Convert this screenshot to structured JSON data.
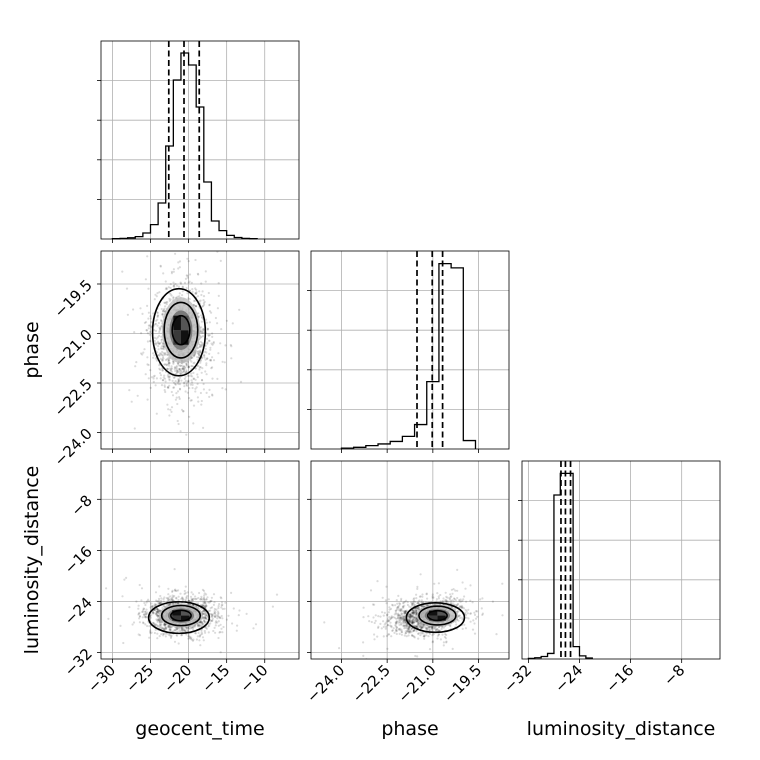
{
  "figure": {
    "type": "corner",
    "parameters": [
      "geocent_time",
      "phase",
      "luminosity_distance"
    ]
  },
  "chart_data": [
    {
      "type": "bar",
      "panel": "hist-geocent_time",
      "xlabel": "geocent_time",
      "xlim": [
        -31.5,
        -5.5
      ],
      "bins": [
        [
          -30.0,
          1
        ],
        [
          -29.0,
          2
        ],
        [
          -28.0,
          4
        ],
        [
          -27.0,
          8
        ],
        [
          -26.0,
          20
        ],
        [
          -25.0,
          48
        ],
        [
          -24.0,
          120
        ],
        [
          -23.0,
          310
        ],
        [
          -22.0,
          530
        ],
        [
          -21.0,
          620
        ],
        [
          -20.0,
          580
        ],
        [
          -19.0,
          440
        ],
        [
          -18.0,
          190
        ],
        [
          -17.0,
          60
        ],
        [
          -16.0,
          28
        ],
        [
          -15.0,
          12
        ],
        [
          -14.0,
          5
        ],
        [
          -13.0,
          2
        ],
        [
          -12.0,
          1
        ]
      ],
      "bin_width": 1.0,
      "quantiles": [
        -22.6,
        -20.6,
        -18.6
      ],
      "ymax": 660,
      "tick_labels": [
        "-30",
        "-25",
        "-20",
        "-15",
        "-10"
      ]
    },
    {
      "type": "scatter",
      "panel": "geocent_time-vs-phase",
      "xlabel": "geocent_time",
      "ylabel": "phase",
      "xlim": [
        -31.5,
        -5.5
      ],
      "ylim": [
        -24.5,
        -18.5
      ],
      "center": [
        -21.0,
        -20.9
      ],
      "spread": [
        2.0,
        0.8
      ],
      "x_ticks": [
        "-30",
        "-25",
        "-20",
        "-15",
        "-10"
      ],
      "y_ticks": [
        "-19.5",
        "-21.0",
        "-22.5",
        "-24.0"
      ]
    },
    {
      "type": "bar",
      "panel": "hist-phase",
      "xlabel": "phase",
      "xlim": [
        -25.0,
        -18.5
      ],
      "bins": [
        [
          -24.0,
          2
        ],
        [
          -23.6,
          4
        ],
        [
          -23.2,
          8
        ],
        [
          -22.8,
          12
        ],
        [
          -22.4,
          18
        ],
        [
          -22.0,
          30
        ],
        [
          -21.6,
          58
        ],
        [
          -21.2,
          160
        ],
        [
          -20.8,
          440
        ],
        [
          -20.4,
          430
        ],
        [
          -20.0,
          20
        ]
      ],
      "bin_width": 0.4,
      "quantiles": [
        -21.52,
        -21.02,
        -20.68
      ],
      "ymax": 470,
      "tick_labels": [
        "-24.0",
        "-22.5",
        "-21.0",
        "-19.5"
      ]
    },
    {
      "type": "scatter",
      "panel": "geocent_time-vs-luminosity_distance",
      "xlabel": "geocent_time",
      "ylabel": "luminosity_distance",
      "xlim": [
        -31.5,
        -5.5
      ],
      "ylim": [
        -33,
        -2
      ],
      "center": [
        -21.0,
        -26.2
      ],
      "spread": [
        2.3,
        1.5
      ],
      "x_ticks": [
        "-30",
        "-25",
        "-20",
        "-15",
        "-10"
      ],
      "y_ticks": [
        "-8",
        "-16",
        "-24",
        "-32"
      ]
    },
    {
      "type": "scatter",
      "panel": "phase-vs-luminosity_distance",
      "xlabel": "phase",
      "ylabel": "luminosity_distance",
      "xlim": [
        -25.0,
        -18.5
      ],
      "ylim": [
        -33,
        -2
      ],
      "center": [
        -20.85,
        -26.2
      ],
      "spread": [
        0.55,
        1.4
      ],
      "x_ticks": [
        "-24.0",
        "-22.5",
        "-21.0",
        "-19.5"
      ],
      "y_ticks": [
        "-8",
        "-16",
        "-24",
        "-32"
      ]
    },
    {
      "type": "bar",
      "panel": "hist-luminosity_distance",
      "xlabel": "luminosity_distance",
      "xlim": [
        -33,
        -2
      ],
      "bins": [
        [
          -32.0,
          2
        ],
        [
          -31.0,
          4
        ],
        [
          -30.0,
          8
        ],
        [
          -29.0,
          18
        ],
        [
          -28.0,
          530
        ],
        [
          -27.0,
          600
        ],
        [
          -26.0,
          600
        ],
        [
          -25.0,
          40
        ],
        [
          -24.0,
          10
        ],
        [
          -23.0,
          3
        ]
      ],
      "bin_width": 1.0,
      "quantiles": [
        -26.9,
        -26.2,
        -25.4
      ],
      "ymax": 640,
      "tick_labels": [
        "-32",
        "-24",
        "-16",
        "-8"
      ]
    }
  ]
}
